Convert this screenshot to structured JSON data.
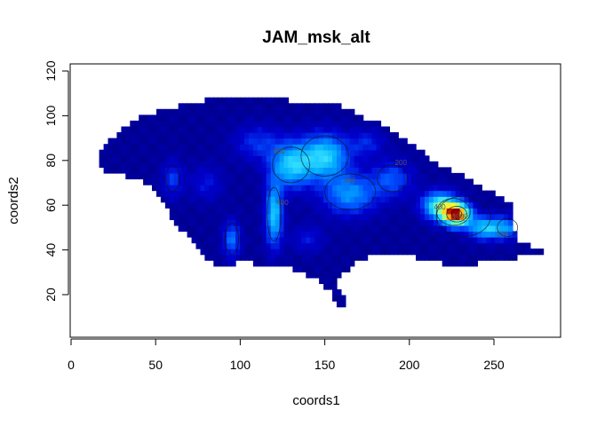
{
  "chart_data": {
    "type": "heatmap",
    "title": "JAM_msk_alt",
    "xlabel": "coords1",
    "ylabel": "coords2",
    "xlim": [
      0,
      290
    ],
    "ylim": [
      0,
      122
    ],
    "x_ticks": [
      0,
      50,
      100,
      150,
      200,
      250
    ],
    "y_ticks": [
      20,
      40,
      60,
      80,
      100,
      120
    ],
    "x_tick_labels": [
      "0",
      "50",
      "100",
      "150",
      "200",
      "250"
    ],
    "y_tick_labels": [
      "20",
      "40",
      "60",
      "80",
      "100",
      "120"
    ],
    "grid": false,
    "legend": "none",
    "contour_labels": [
      {
        "text": "600",
        "x": 123,
        "y": 83
      },
      {
        "text": "400",
        "x": 165,
        "y": 70
      },
      {
        "text": "200",
        "x": 195,
        "y": 78
      },
      {
        "text": "400",
        "x": 125,
        "y": 60
      },
      {
        "text": "400",
        "x": 218,
        "y": 58
      },
      {
        "text": "1000",
        "x": 230,
        "y": 54
      },
      {
        "text": "200",
        "x": 255,
        "y": 46
      }
    ],
    "colormap": [
      "#00008b",
      "#0000cd",
      "#0050ff",
      "#00aaff",
      "#33e0ff",
      "#7fffaa",
      "#ffff33",
      "#ff8800",
      "#aa0000"
    ],
    "value_range": [
      0,
      1200
    ]
  }
}
